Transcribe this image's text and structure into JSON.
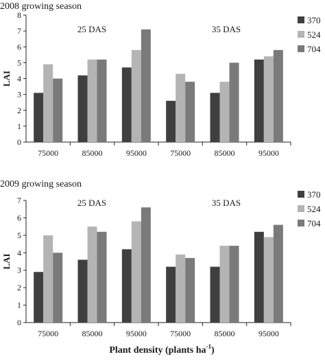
{
  "chart_data": {
    "x_axis_label": "Plant density (plants ha",
    "x_axis_label_sup": "-1",
    "x_axis_label_end": ")",
    "panels": [
      {
        "type": "bar",
        "title": "2008 growing season",
        "ylabel": "LAI",
        "ylim": [
          0,
          8
        ],
        "yticks": [
          0,
          1,
          2,
          3,
          4,
          5,
          6,
          7,
          8
        ],
        "categories": [
          "75000",
          "85000",
          "95000",
          "75000",
          "85000",
          "95000"
        ],
        "group_labels": [
          "25 DAS",
          "35 DAS"
        ],
        "series": [
          {
            "name": "370",
            "color": "#3f3f3f",
            "values": [
              3.1,
              4.2,
              4.7,
              2.6,
              3.1,
              5.2
            ]
          },
          {
            "name": "524",
            "color": "#b4b4b4",
            "values": [
              4.9,
              5.2,
              5.8,
              4.3,
              3.8,
              5.4
            ]
          },
          {
            "name": "704",
            "color": "#7a7a7a",
            "values": [
              4.0,
              5.2,
              7.1,
              3.8,
              5.0,
              5.8
            ]
          }
        ],
        "legend_position": "right"
      },
      {
        "type": "bar",
        "title": "2009 growing season",
        "ylabel": "LAI",
        "ylim": [
          0,
          7
        ],
        "yticks": [
          0,
          1,
          2,
          3,
          4,
          5,
          6,
          7
        ],
        "categories": [
          "75000",
          "85000",
          "95000",
          "75000",
          "85000",
          "95000"
        ],
        "group_labels": [
          "25 DAS",
          "35 DAS"
        ],
        "series": [
          {
            "name": "370",
            "color": "#3f3f3f",
            "values": [
              2.9,
              3.6,
              4.2,
              3.2,
              3.2,
              5.2
            ]
          },
          {
            "name": "524",
            "color": "#b4b4b4",
            "values": [
              5.0,
              5.5,
              5.8,
              3.9,
              4.4,
              4.9
            ]
          },
          {
            "name": "704",
            "color": "#7a7a7a",
            "values": [
              4.0,
              5.2,
              6.6,
              3.7,
              4.4,
              5.6
            ]
          }
        ],
        "legend_position": "right"
      }
    ]
  }
}
